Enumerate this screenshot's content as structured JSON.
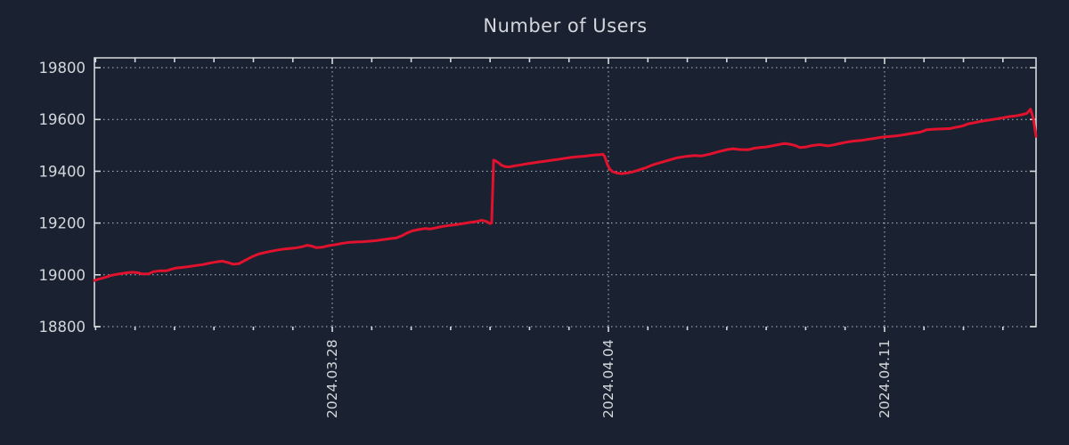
{
  "page": {
    "background_color": "#1a2130"
  },
  "chart_data": {
    "type": "line",
    "title": "Number of Users",
    "legend": "none",
    "grid": {
      "enabled": true,
      "style": "dotted",
      "color": "#b7bdc5"
    },
    "border_color": "#d6dade",
    "text_color": "#d3d7db",
    "x_axis": {
      "unit": "date",
      "range_days": [
        -6.03,
        17.84
      ],
      "major_ticks": [
        {
          "day": 0,
          "label": "2024.03.28"
        },
        {
          "day": 7,
          "label": "2024.04.04"
        },
        {
          "day": 14,
          "label": "2024.04.11"
        }
      ],
      "minor_tick_step_days": 1,
      "label_rotation_deg": -90
    },
    "y_axis": {
      "range": [
        18800,
        19838
      ],
      "ticks": [
        18800,
        19000,
        19200,
        19400,
        19600,
        19800
      ]
    },
    "series": [
      {
        "name": "users",
        "color": "#e1122d",
        "line_width": 3,
        "points": [
          [
            -6.03,
            18978
          ],
          [
            -5.94,
            18983
          ],
          [
            -5.76,
            18990
          ],
          [
            -5.6,
            18998
          ],
          [
            -5.42,
            19003
          ],
          [
            -5.26,
            19007
          ],
          [
            -5.08,
            19010
          ],
          [
            -4.92,
            19008
          ],
          [
            -4.81,
            19003
          ],
          [
            -4.65,
            19004
          ],
          [
            -4.54,
            19012
          ],
          [
            -4.36,
            19016
          ],
          [
            -4.2,
            19016
          ],
          [
            -4.09,
            19021
          ],
          [
            -3.97,
            19026
          ],
          [
            -3.79,
            19029
          ],
          [
            -3.63,
            19032
          ],
          [
            -3.45,
            19036
          ],
          [
            -3.27,
            19040
          ],
          [
            -3.12,
            19045
          ],
          [
            -2.94,
            19050
          ],
          [
            -2.78,
            19053
          ],
          [
            -2.64,
            19047
          ],
          [
            -2.51,
            19041
          ],
          [
            -2.37,
            19043
          ],
          [
            -2.21,
            19056
          ],
          [
            -2.03,
            19070
          ],
          [
            -1.87,
            19080
          ],
          [
            -1.65,
            19088
          ],
          [
            -1.42,
            19095
          ],
          [
            -1.2,
            19100
          ],
          [
            -0.97,
            19103
          ],
          [
            -0.81,
            19107
          ],
          [
            -0.63,
            19114
          ],
          [
            -0.52,
            19111
          ],
          [
            -0.41,
            19105
          ],
          [
            -0.25,
            19107
          ],
          [
            -0.07,
            19113
          ],
          [
            0.09,
            19117
          ],
          [
            0.27,
            19122
          ],
          [
            0.45,
            19126
          ],
          [
            0.61,
            19127
          ],
          [
            0.77,
            19128
          ],
          [
            0.95,
            19130
          ],
          [
            1.11,
            19132
          ],
          [
            1.29,
            19136
          ],
          [
            1.47,
            19140
          ],
          [
            1.63,
            19143
          ],
          [
            1.78,
            19152
          ],
          [
            1.9,
            19162
          ],
          [
            2.03,
            19170
          ],
          [
            2.19,
            19175
          ],
          [
            2.35,
            19179
          ],
          [
            2.48,
            19177
          ],
          [
            2.64,
            19182
          ],
          [
            2.8,
            19187
          ],
          [
            2.98,
            19191
          ],
          [
            3.14,
            19194
          ],
          [
            3.32,
            19198
          ],
          [
            3.48,
            19202
          ],
          [
            3.66,
            19206
          ],
          [
            3.79,
            19211
          ],
          [
            3.91,
            19206
          ],
          [
            4.0,
            19198
          ],
          [
            4.04,
            19200
          ],
          [
            4.09,
            19443
          ],
          [
            4.13,
            19441
          ],
          [
            4.22,
            19432
          ],
          [
            4.29,
            19423
          ],
          [
            4.38,
            19418
          ],
          [
            4.49,
            19417
          ],
          [
            4.63,
            19421
          ],
          [
            4.79,
            19425
          ],
          [
            4.94,
            19429
          ],
          [
            5.08,
            19432
          ],
          [
            5.24,
            19436
          ],
          [
            5.4,
            19439
          ],
          [
            5.53,
            19442
          ],
          [
            5.69,
            19445
          ],
          [
            5.85,
            19449
          ],
          [
            6.03,
            19453
          ],
          [
            6.21,
            19456
          ],
          [
            6.37,
            19458
          ],
          [
            6.48,
            19460
          ],
          [
            6.66,
            19463
          ],
          [
            6.8,
            19464
          ],
          [
            6.86,
            19466
          ],
          [
            6.91,
            19455
          ],
          [
            6.98,
            19424
          ],
          [
            7.04,
            19407
          ],
          [
            7.11,
            19398
          ],
          [
            7.22,
            19393
          ],
          [
            7.34,
            19391
          ],
          [
            7.5,
            19394
          ],
          [
            7.65,
            19399
          ],
          [
            7.79,
            19406
          ],
          [
            7.95,
            19414
          ],
          [
            8.11,
            19424
          ],
          [
            8.24,
            19430
          ],
          [
            8.4,
            19437
          ],
          [
            8.56,
            19444
          ],
          [
            8.74,
            19452
          ],
          [
            8.96,
            19457
          ],
          [
            9.19,
            19461
          ],
          [
            9.35,
            19459
          ],
          [
            9.57,
            19466
          ],
          [
            9.8,
            19476
          ],
          [
            10.02,
            19484
          ],
          [
            10.16,
            19487
          ],
          [
            10.32,
            19484
          ],
          [
            10.54,
            19483
          ],
          [
            10.7,
            19489
          ],
          [
            10.84,
            19492
          ],
          [
            11.0,
            19494
          ],
          [
            11.15,
            19498
          ],
          [
            11.31,
            19503
          ],
          [
            11.45,
            19507
          ],
          [
            11.58,
            19505
          ],
          [
            11.72,
            19500
          ],
          [
            11.85,
            19492
          ],
          [
            12.01,
            19494
          ],
          [
            12.12,
            19498
          ],
          [
            12.26,
            19501
          ],
          [
            12.35,
            19503
          ],
          [
            12.48,
            19500
          ],
          [
            12.57,
            19498
          ],
          [
            12.71,
            19502
          ],
          [
            12.8,
            19505
          ],
          [
            12.96,
            19510
          ],
          [
            13.09,
            19514
          ],
          [
            13.25,
            19517
          ],
          [
            13.41,
            19519
          ],
          [
            13.57,
            19523
          ],
          [
            13.7,
            19526
          ],
          [
            13.86,
            19530
          ],
          [
            14.0,
            19533
          ],
          [
            14.16,
            19535
          ],
          [
            14.31,
            19537
          ],
          [
            14.45,
            19540
          ],
          [
            14.61,
            19544
          ],
          [
            14.77,
            19548
          ],
          [
            14.9,
            19551
          ],
          [
            15.01,
            19557
          ],
          [
            15.06,
            19560
          ],
          [
            15.22,
            19562
          ],
          [
            15.35,
            19563
          ],
          [
            15.51,
            19564
          ],
          [
            15.67,
            19565
          ],
          [
            15.8,
            19570
          ],
          [
            15.96,
            19574
          ],
          [
            16.12,
            19583
          ],
          [
            16.26,
            19587
          ],
          [
            16.41,
            19592
          ],
          [
            16.57,
            19596
          ],
          [
            16.71,
            19599
          ],
          [
            16.87,
            19603
          ],
          [
            17.02,
            19607
          ],
          [
            17.16,
            19611
          ],
          [
            17.32,
            19614
          ],
          [
            17.47,
            19618
          ],
          [
            17.61,
            19624
          ],
          [
            17.7,
            19640
          ],
          [
            17.77,
            19605
          ],
          [
            17.84,
            19535
          ]
        ]
      }
    ]
  }
}
